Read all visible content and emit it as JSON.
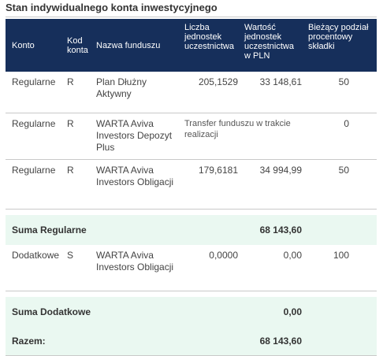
{
  "title": "Stan indywidualnego konta inwestycyjnego",
  "headers": {
    "konto": "Konto",
    "kod": "Kod konta",
    "nazwa": "Nazwa funduszu",
    "liczba": "Liczba jednostek uczestnictwa",
    "wartosc": "Wartość jednostek uczestnictwa w PLN",
    "podzial": "Bieżący podział procentowy składki"
  },
  "rows": [
    {
      "konto": "Regularne",
      "kod": "R",
      "nazwa": "Plan Dłużny Aktywny",
      "liczba": "205,1529",
      "wartosc": "33 148,61",
      "podzial": "50"
    },
    {
      "konto": "Regularne",
      "kod": "R",
      "nazwa": "WARTA Aviva Investors Depozyt Plus",
      "transfer": "Transfer funduszu w trakcie realizacji",
      "podzial": "0"
    },
    {
      "konto": "Regularne",
      "kod": "R",
      "nazwa": "WARTA Aviva Investors Obligacji",
      "liczba": "179,6181",
      "wartosc": "34 994,99",
      "podzial": "50"
    },
    {
      "konto": "Dodatkowe",
      "kod": "S",
      "nazwa": "WARTA Aviva Investors Obligacji",
      "liczba": "0,0000",
      "wartosc": "0,00",
      "podzial": "100"
    }
  ],
  "sums": {
    "regularne_label": "Suma Regularne",
    "regularne_value": "68 143,60",
    "dodatkowe_label": "Suma Dodatkowe",
    "dodatkowe_value": "0,00",
    "razem_label": "Razem:",
    "razem_value": "68 143,60"
  }
}
